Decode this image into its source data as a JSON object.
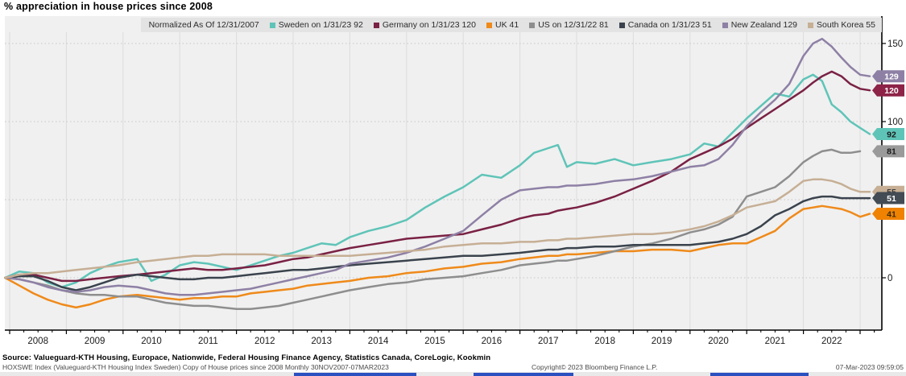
{
  "title": "% appreciation in house prices since 2008",
  "legend": {
    "note": "Normalized As Of 12/31/2007",
    "items": [
      {
        "label": "Sweden on 1/31/23 92",
        "color": "#5fc4b8"
      },
      {
        "label": "Germany on 1/31/23 120",
        "color": "#7a2144"
      },
      {
        "label": "UK 41",
        "color": "#ef8a1a"
      },
      {
        "label": "US on 12/31/22 81",
        "color": "#8e8e8e"
      },
      {
        "label": "Canada on 1/31/23 51",
        "color": "#3a434d"
      },
      {
        "label": "New Zealand 129",
        "color": "#8e80a5"
      },
      {
        "label": "South Korea 55",
        "color": "#c6af95"
      }
    ]
  },
  "axis": {
    "y_ticks": [
      {
        "label": "150",
        "value": 150
      },
      {
        "label": "100",
        "value": 100
      },
      {
        "label": "0",
        "value": 0
      }
    ],
    "grid_values": [
      0,
      50,
      100,
      150
    ]
  },
  "badges": [
    {
      "text": "129",
      "value": 129,
      "bg": "#8e80a5",
      "fg": "#ffffff"
    },
    {
      "text": "120",
      "value": 120,
      "bg": "#8d2347",
      "fg": "#ffffff"
    },
    {
      "text": "92",
      "value": 92,
      "bg": "#5fc4b8",
      "fg": "#1a1a1a"
    },
    {
      "text": "81",
      "value": 81,
      "bg": "#9a9a9a",
      "fg": "#1a1a1a"
    },
    {
      "text": "55",
      "value": 55,
      "bg": "#c6af95",
      "fg": "#3a3a3a"
    },
    {
      "text": "51",
      "value": 51,
      "bg": "#434b54",
      "fg": "#ffffff"
    },
    {
      "text": "41",
      "value": 41,
      "bg": "#ef8200",
      "fg": "#3a2a00"
    }
  ],
  "footer": {
    "source_line": "Source: Valueguard-KTH Housing, Europace, Nationwide, Federal Housing Finance Agency, Statistics Canada, CoreLogic, Kookmin",
    "index_line": "HOXSWE Index (Valueguard-KTH Housing Index Sweden) Copy of House prices since 2008  Monthly 30NOV2007-07MAR2023",
    "copyright": "Copyright© 2023 Bloomberg Finance L.P.",
    "timestamp": "07-Mar-2023 09:59:05"
  },
  "chart_data": {
    "type": "line",
    "title": "% appreciation in house prices since 2008",
    "xlabel": "",
    "ylabel": "",
    "x_year_labels": [
      "2008",
      "2009",
      "2010",
      "2011",
      "2012",
      "2013",
      "2014",
      "2015",
      "2016",
      "2017",
      "2018",
      "2019",
      "2020",
      "2021",
      "2022"
    ],
    "x_range": [
      2007.92,
      2023.25
    ],
    "ylim": [
      -33,
      168
    ],
    "grid": true,
    "legend_position": "top",
    "x": [
      2007.92,
      2008.17,
      2008.42,
      2008.67,
      2008.92,
      2009.17,
      2009.42,
      2009.67,
      2009.92,
      2010.25,
      2010.5,
      2010.75,
      2011,
      2011.25,
      2011.5,
      2011.75,
      2012,
      2012.25,
      2012.5,
      2012.75,
      2013,
      2013.25,
      2013.5,
      2013.75,
      2014,
      2014.33,
      2014.67,
      2015,
      2015.33,
      2015.67,
      2016,
      2016.33,
      2016.67,
      2017,
      2017.25,
      2017.5,
      2017.67,
      2017.83,
      2018,
      2018.33,
      2018.67,
      2019,
      2019.33,
      2019.67,
      2020,
      2020.25,
      2020.5,
      2020.75,
      2021,
      2021.25,
      2021.5,
      2021.75,
      2022,
      2022.17,
      2022.33,
      2022.5,
      2022.67,
      2022.83,
      2023,
      2023.17
    ],
    "series": [
      {
        "name": "Sweden",
        "color": "#5fc4b8",
        "last": 92,
        "values": [
          0,
          4,
          3,
          -3,
          -6,
          -3,
          3,
          7,
          10,
          12,
          -2,
          2,
          8,
          10,
          9,
          7,
          5,
          8,
          11,
          14,
          16,
          19,
          22,
          21,
          26,
          30,
          33,
          37,
          45,
          52,
          58,
          66,
          64,
          72,
          80,
          83,
          85,
          71,
          74,
          73,
          76,
          72,
          74,
          76,
          79,
          86,
          84,
          93,
          102,
          110,
          118,
          116,
          127,
          130,
          126,
          111,
          106,
          100,
          96,
          92
        ]
      },
      {
        "name": "Germany",
        "color": "#7a2144",
        "last": 120,
        "values": [
          0,
          2,
          2,
          0,
          -2,
          -2,
          -1,
          0,
          1,
          2,
          3,
          4,
          5,
          6,
          5,
          5,
          6,
          7,
          8,
          10,
          12,
          13,
          15,
          17,
          19,
          21,
          23,
          25,
          26,
          27,
          28,
          31,
          34,
          38,
          40,
          41,
          43,
          44,
          45,
          48,
          52,
          57,
          62,
          68,
          76,
          80,
          84,
          89,
          96,
          102,
          108,
          114,
          120,
          125,
          129,
          132,
          129,
          124,
          121,
          120
        ]
      },
      {
        "name": "UK",
        "color": "#ef8a1a",
        "last": 41,
        "values": [
          0,
          -5,
          -10,
          -14,
          -17,
          -19,
          -17,
          -14,
          -12,
          -11,
          -12,
          -13,
          -14,
          -13,
          -13,
          -12,
          -12,
          -10,
          -9,
          -8,
          -7,
          -5,
          -4,
          -3,
          -2,
          0,
          1,
          3,
          4,
          6,
          7,
          9,
          10,
          12,
          13,
          14,
          14,
          15,
          15,
          16,
          17,
          17,
          18,
          18,
          17,
          19,
          21,
          22,
          22,
          26,
          30,
          38,
          44,
          45,
          46,
          45,
          44,
          42,
          39,
          41
        ]
      },
      {
        "name": "US",
        "color": "#8e8e8e",
        "last": 81,
        "values": [
          0,
          -1,
          -3,
          -5,
          -8,
          -10,
          -11,
          -11,
          -12,
          -12,
          -14,
          -16,
          -17,
          -18,
          -18,
          -19,
          -20,
          -20,
          -19,
          -18,
          -16,
          -14,
          -12,
          -10,
          -8,
          -6,
          -4,
          -3,
          -1,
          0,
          1,
          3,
          5,
          8,
          9,
          10,
          11,
          11,
          12,
          14,
          17,
          20,
          22,
          25,
          29,
          31,
          34,
          39,
          52,
          55,
          58,
          65,
          74,
          78,
          81,
          82,
          80,
          80,
          81,
          null
        ]
      },
      {
        "name": "Canada",
        "color": "#3a434d",
        "last": 51,
        "values": [
          0,
          1,
          1,
          -2,
          -6,
          -8,
          -6,
          -3,
          0,
          2,
          1,
          0,
          -1,
          -1,
          0,
          0,
          1,
          2,
          3,
          4,
          5,
          5,
          6,
          7,
          8,
          9,
          10,
          11,
          12,
          13,
          14,
          14,
          15,
          16,
          17,
          18,
          18,
          19,
          19,
          20,
          20,
          21,
          21,
          21,
          21,
          22,
          23,
          25,
          28,
          33,
          40,
          44,
          49,
          51,
          52,
          52,
          51,
          51,
          51,
          51
        ]
      },
      {
        "name": "New Zealand",
        "color": "#8e80a5",
        "last": 129,
        "values": [
          0,
          -1,
          -3,
          -6,
          -8,
          -9,
          -8,
          -6,
          -5,
          -6,
          -8,
          -10,
          -11,
          -11,
          -10,
          -9,
          -8,
          -7,
          -5,
          -3,
          -1,
          1,
          3,
          5,
          9,
          11,
          13,
          16,
          20,
          25,
          30,
          40,
          50,
          56,
          57,
          58,
          58,
          59,
          59,
          60,
          62,
          63,
          65,
          68,
          71,
          72,
          76,
          85,
          97,
          106,
          114,
          124,
          142,
          150,
          153,
          148,
          141,
          135,
          130,
          129
        ]
      },
      {
        "name": "South Korea",
        "color": "#c6af95",
        "last": 55,
        "values": [
          0,
          2,
          3,
          3,
          4,
          5,
          6,
          7,
          8,
          10,
          11,
          12,
          13,
          14,
          14,
          15,
          15,
          15,
          15,
          14,
          14,
          14,
          14,
          14,
          14,
          15,
          16,
          17,
          18,
          20,
          21,
          22,
          22,
          23,
          23,
          24,
          24,
          25,
          25,
          26,
          27,
          28,
          28,
          29,
          31,
          33,
          36,
          40,
          45,
          47,
          49,
          55,
          62,
          63,
          63,
          62,
          60,
          57,
          55,
          55
        ]
      }
    ]
  }
}
